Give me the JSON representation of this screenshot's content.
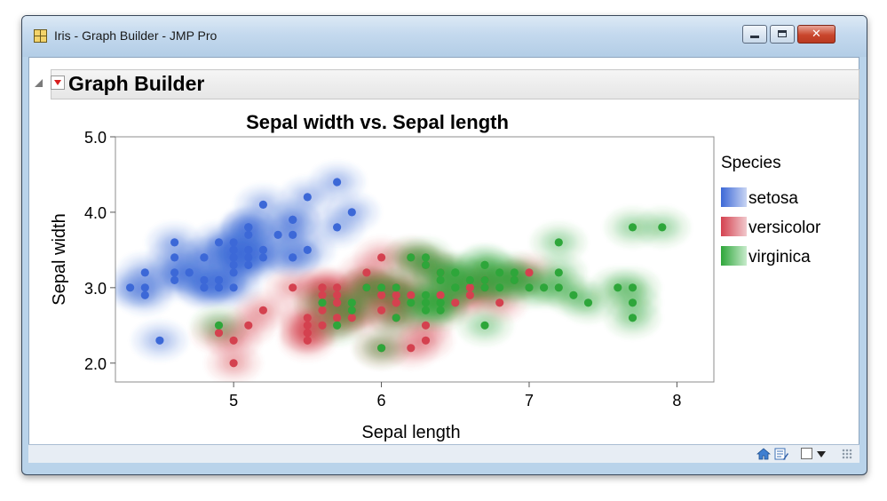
{
  "window": {
    "title": "Iris - Graph Builder - JMP Pro"
  },
  "report": {
    "title": "Graph Builder"
  },
  "colors": {
    "setosa": "#3c68d7",
    "versicolor": "#d4414f",
    "virginica": "#2ea63a",
    "setosa_light": "#d8e0f4",
    "versicolor_light": "#f2d7d9",
    "virginica_light": "#d5eed8"
  },
  "icons": [
    "graph-builder-app-icon",
    "disclosure-triangle-icon",
    "red-triangle-menu-icon",
    "minimize-icon",
    "maximize-icon",
    "close-icon",
    "home-icon",
    "edit-icon",
    "checkbox-icon",
    "dropdown-arrow-icon",
    "resize-grip-icon"
  ],
  "chart_data": {
    "type": "scatter",
    "title": "Sepal width vs. Sepal length",
    "xlabel": "Sepal length",
    "ylabel": "Sepal width",
    "xlim": [
      4.2,
      8.25
    ],
    "ylim": [
      1.75,
      5.0
    ],
    "xticks": [
      5,
      6,
      7,
      8
    ],
    "yticks": [
      2.0,
      3.0,
      4.0,
      5.0
    ],
    "xtick_labels": [
      "5",
      "6",
      "7",
      "8"
    ],
    "ytick_labels": [
      "2.0",
      "3.0",
      "4.0",
      "5.0"
    ],
    "grid": false,
    "legend": {
      "title": "Species",
      "position": "right",
      "entries": [
        "setosa",
        "versicolor",
        "virginica"
      ]
    },
    "overlay": "density contours",
    "series": [
      {
        "name": "setosa",
        "points": [
          [
            5.1,
            3.5
          ],
          [
            4.9,
            3.0
          ],
          [
            4.7,
            3.2
          ],
          [
            4.6,
            3.1
          ],
          [
            5.0,
            3.6
          ],
          [
            5.4,
            3.9
          ],
          [
            4.6,
            3.4
          ],
          [
            5.0,
            3.4
          ],
          [
            4.4,
            2.9
          ],
          [
            4.9,
            3.1
          ],
          [
            5.4,
            3.7
          ],
          [
            4.8,
            3.4
          ],
          [
            4.8,
            3.0
          ],
          [
            4.3,
            3.0
          ],
          [
            5.8,
            4.0
          ],
          [
            5.7,
            4.4
          ],
          [
            5.4,
            3.9
          ],
          [
            5.1,
            3.5
          ],
          [
            5.7,
            3.8
          ],
          [
            5.1,
            3.8
          ],
          [
            5.4,
            3.4
          ],
          [
            5.1,
            3.7
          ],
          [
            4.6,
            3.6
          ],
          [
            5.1,
            3.3
          ],
          [
            4.8,
            3.4
          ],
          [
            5.0,
            3.0
          ],
          [
            5.0,
            3.4
          ],
          [
            5.2,
            3.5
          ],
          [
            5.2,
            3.4
          ],
          [
            4.7,
            3.2
          ],
          [
            4.8,
            3.1
          ],
          [
            5.4,
            3.4
          ],
          [
            5.2,
            4.1
          ],
          [
            5.5,
            4.2
          ],
          [
            4.9,
            3.1
          ],
          [
            5.0,
            3.2
          ],
          [
            5.5,
            3.5
          ],
          [
            4.9,
            3.6
          ],
          [
            4.4,
            3.0
          ],
          [
            5.1,
            3.4
          ],
          [
            5.0,
            3.5
          ],
          [
            4.5,
            2.3
          ],
          [
            4.4,
            3.2
          ],
          [
            5.0,
            3.5
          ],
          [
            5.1,
            3.8
          ],
          [
            4.8,
            3.0
          ],
          [
            5.1,
            3.8
          ],
          [
            4.6,
            3.2
          ],
          [
            5.3,
            3.7
          ],
          [
            5.0,
            3.3
          ]
        ]
      },
      {
        "name": "versicolor",
        "points": [
          [
            5.5,
            2.3
          ],
          [
            6.5,
            2.8
          ],
          [
            5.7,
            2.8
          ],
          [
            6.3,
            3.3
          ],
          [
            4.9,
            2.4
          ],
          [
            5.2,
            2.7
          ],
          [
            5.0,
            2.0
          ],
          [
            5.9,
            3.0
          ],
          [
            6.0,
            2.2
          ],
          [
            6.1,
            2.9
          ],
          [
            5.6,
            2.9
          ],
          [
            5.6,
            3.0
          ],
          [
            5.8,
            2.7
          ],
          [
            6.2,
            2.2
          ],
          [
            5.6,
            2.5
          ],
          [
            5.9,
            3.2
          ],
          [
            6.1,
            2.8
          ],
          [
            6.3,
            2.5
          ],
          [
            6.1,
            2.8
          ],
          [
            6.4,
            2.9
          ],
          [
            6.6,
            3.0
          ],
          [
            6.8,
            2.8
          ],
          [
            6.0,
            2.9
          ],
          [
            5.7,
            2.6
          ],
          [
            5.5,
            2.4
          ],
          [
            5.5,
            2.4
          ],
          [
            5.8,
            2.7
          ],
          [
            6.0,
            2.7
          ],
          [
            5.4,
            3.0
          ],
          [
            6.0,
            3.4
          ],
          [
            6.3,
            2.3
          ],
          [
            5.6,
            3.0
          ],
          [
            5.5,
            2.5
          ],
          [
            5.5,
            2.6
          ],
          [
            6.1,
            3.0
          ],
          [
            5.8,
            2.6
          ],
          [
            5.0,
            2.3
          ],
          [
            5.6,
            2.7
          ],
          [
            5.7,
            3.0
          ],
          [
            5.7,
            2.9
          ],
          [
            6.2,
            2.9
          ],
          [
            5.1,
            2.5
          ],
          [
            5.7,
            2.8
          ],
          [
            6.7,
            3.1
          ],
          [
            6.6,
            2.9
          ],
          [
            6.7,
            3.0
          ],
          [
            6.0,
            3.0
          ],
          [
            5.9,
            3.0
          ],
          [
            6.2,
            3.4
          ],
          [
            6.4,
            3.2
          ],
          [
            6.9,
            3.1
          ],
          [
            7.0,
            3.2
          ],
          [
            6.1,
            2.6
          ],
          [
            5.9,
            3.0
          ]
        ]
      },
      {
        "name": "virginica",
        "points": [
          [
            6.3,
            3.3
          ],
          [
            5.8,
            2.7
          ],
          [
            7.1,
            3.0
          ],
          [
            6.3,
            2.9
          ],
          [
            6.5,
            3.0
          ],
          [
            7.6,
            3.0
          ],
          [
            4.9,
            2.5
          ],
          [
            7.3,
            2.9
          ],
          [
            6.7,
            2.5
          ],
          [
            7.2,
            3.6
          ],
          [
            6.5,
            3.2
          ],
          [
            6.4,
            2.7
          ],
          [
            6.8,
            3.0
          ],
          [
            5.7,
            2.5
          ],
          [
            5.8,
            2.8
          ],
          [
            6.4,
            3.2
          ],
          [
            7.7,
            3.8
          ],
          [
            7.7,
            2.6
          ],
          [
            6.0,
            2.2
          ],
          [
            6.9,
            3.2
          ],
          [
            5.6,
            2.8
          ],
          [
            7.7,
            2.8
          ],
          [
            6.3,
            2.7
          ],
          [
            6.7,
            3.3
          ],
          [
            7.2,
            3.2
          ],
          [
            6.2,
            2.8
          ],
          [
            6.1,
            3.0
          ],
          [
            6.4,
            2.8
          ],
          [
            7.2,
            3.0
          ],
          [
            7.4,
            2.8
          ],
          [
            7.9,
            3.8
          ],
          [
            6.4,
            2.8
          ],
          [
            6.3,
            2.8
          ],
          [
            6.1,
            2.6
          ],
          [
            7.7,
            3.0
          ],
          [
            6.3,
            3.4
          ],
          [
            6.4,
            3.1
          ],
          [
            6.0,
            3.0
          ],
          [
            6.9,
            3.1
          ],
          [
            6.7,
            3.1
          ],
          [
            6.9,
            3.1
          ],
          [
            6.8,
            3.2
          ],
          [
            6.7,
            3.3
          ],
          [
            6.7,
            3.0
          ],
          [
            6.5,
            3.0
          ],
          [
            6.2,
            3.4
          ],
          [
            5.9,
            3.0
          ],
          [
            6.5,
            3.2
          ],
          [
            6.6,
            3.1
          ],
          [
            7.0,
            3.0
          ]
        ]
      }
    ]
  }
}
